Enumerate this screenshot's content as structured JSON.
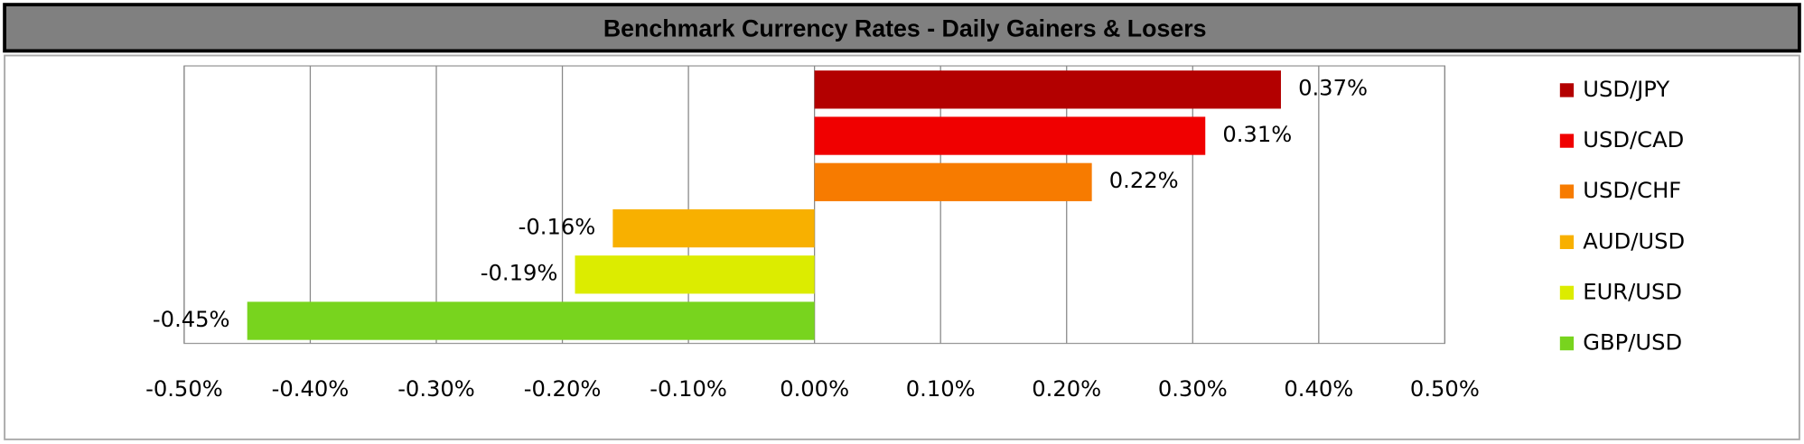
{
  "chart_data": {
    "type": "bar",
    "orientation": "horizontal",
    "title": "Benchmark Currency Rates - Daily Gainers & Losers",
    "series": [
      {
        "name": "USD/JPY",
        "color": "#b30000",
        "values": [
          0.37
        ],
        "value_labels": [
          "0.37%"
        ]
      },
      {
        "name": "USD/CAD",
        "color": "#f00000",
        "values": [
          0.31
        ],
        "value_labels": [
          "0.31%"
        ]
      },
      {
        "name": "USD/CHF",
        "color": "#f77b00",
        "values": [
          0.22
        ],
        "value_labels": [
          "0.22%"
        ]
      },
      {
        "name": "AUD/USD",
        "color": "#f8b000",
        "values": [
          -0.16
        ],
        "value_labels": [
          "-0.16%"
        ]
      },
      {
        "name": "EUR/USD",
        "color": "#dcec00",
        "values": [
          -0.19
        ],
        "value_labels": [
          "-0.19%"
        ]
      },
      {
        "name": "GBP/USD",
        "color": "#78d41e",
        "values": [
          -0.45
        ],
        "value_labels": [
          "-0.45%"
        ]
      }
    ],
    "xlim": [
      -0.5,
      0.5
    ],
    "xticks": [
      {
        "value": -0.5,
        "label": "-0.50%"
      },
      {
        "value": -0.4,
        "label": "-0.40%"
      },
      {
        "value": -0.3,
        "label": "-0.30%"
      },
      {
        "value": -0.2,
        "label": "-0.20%"
      },
      {
        "value": -0.1,
        "label": "-0.10%"
      },
      {
        "value": 0,
        "label": "0.00%"
      },
      {
        "value": 0.1,
        "label": "0.10%"
      },
      {
        "value": 0.2,
        "label": "0.20%"
      },
      {
        "value": 0.3,
        "label": "0.30%"
      },
      {
        "value": 0.4,
        "label": "0.40%"
      },
      {
        "value": 0.5,
        "label": "0.50%"
      }
    ],
    "grid": true,
    "legend": "right"
  }
}
